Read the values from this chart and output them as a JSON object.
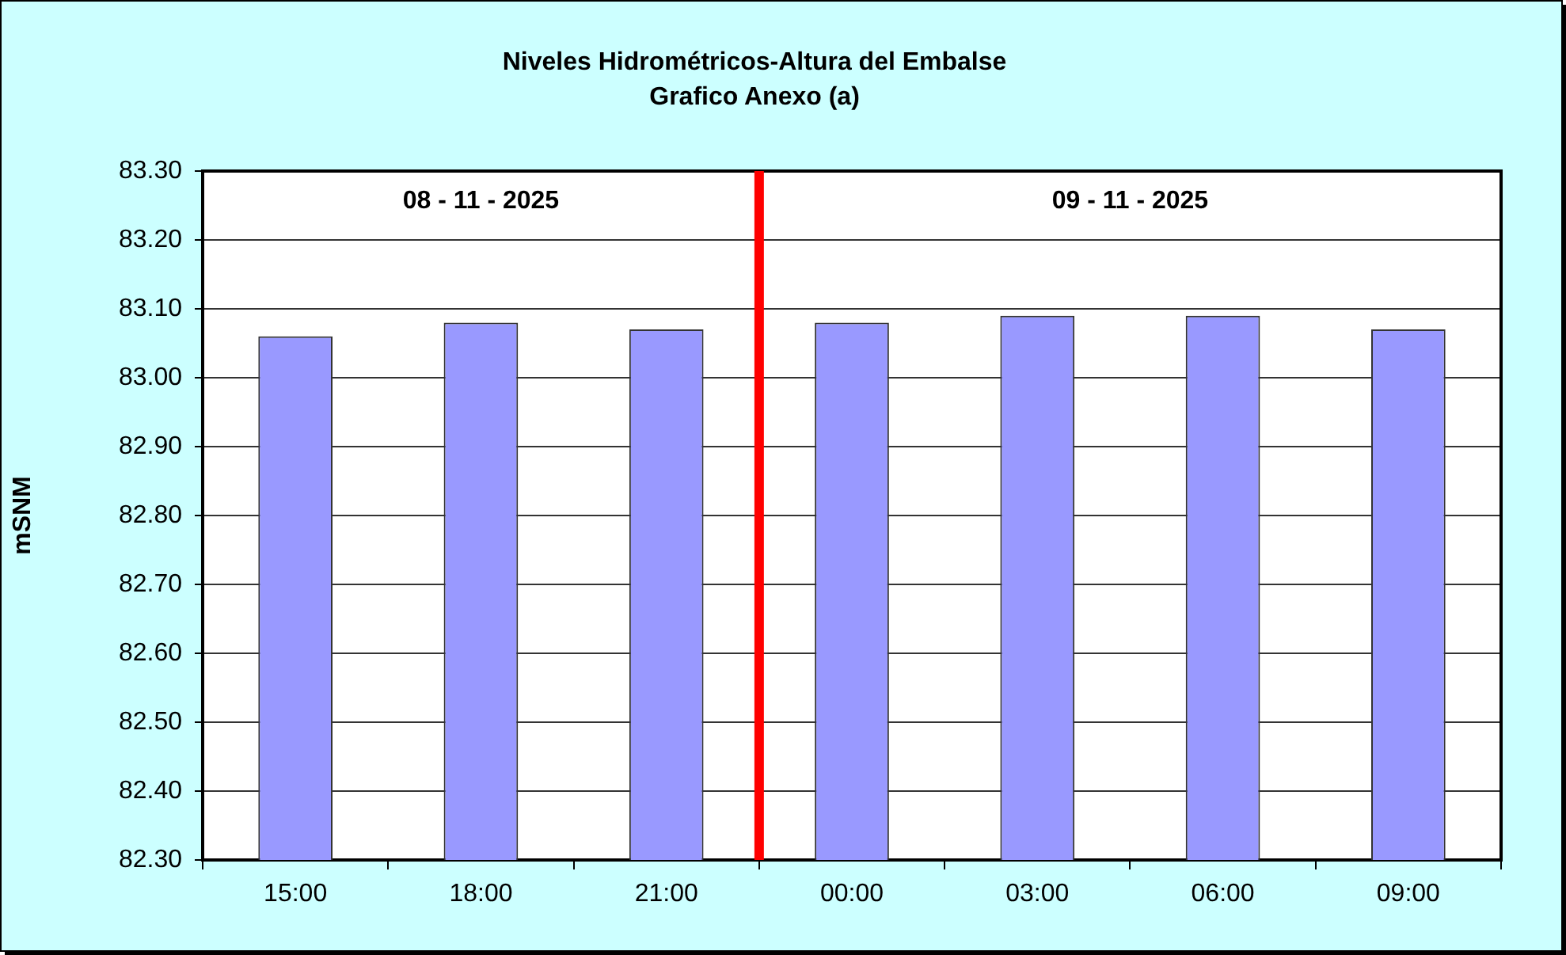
{
  "chart_data": {
    "type": "bar",
    "title": "Niveles Hidrométricos-Altura del Embalse",
    "subtitle": "Grafico Anexo (a)",
    "ylabel": "mSNM",
    "x": [
      "2025-11-08T15:00",
      "2025-11-08T18:00",
      "2025-11-08T21:00",
      "2025-11-09T00:00",
      "2025-11-09T03:00",
      "2025-11-09T06:00",
      "2025-11-09T09:00"
    ],
    "values": [
      83.06,
      83.08,
      83.07,
      83.08,
      83.09,
      83.09,
      83.07
    ],
    "color": "#9999ff",
    "xlim": [
      "2025-11-08T13:30",
      "2025-11-09T10:30"
    ],
    "xticks": [
      {
        "value": "2025-11-08T13:30",
        "label": null
      },
      {
        "value": "2025-11-08T15:00",
        "label": "15:00"
      },
      {
        "value": "2025-11-08T16:30",
        "label": null
      },
      {
        "value": "2025-11-08T18:00",
        "label": "18:00"
      },
      {
        "value": "2025-11-08T19:30",
        "label": null
      },
      {
        "value": "2025-11-08T21:00",
        "label": "21:00"
      },
      {
        "value": "2025-11-08T22:30",
        "label": null
      },
      {
        "value": "2025-11-09T00:00",
        "label": "00:00"
      },
      {
        "value": "2025-11-09T01:30",
        "label": null
      },
      {
        "value": "2025-11-09T03:00",
        "label": "03:00"
      },
      {
        "value": "2025-11-09T04:30",
        "label": null
      },
      {
        "value": "2025-11-09T06:00",
        "label": "06:00"
      },
      {
        "value": "2025-11-09T07:30",
        "label": null
      },
      {
        "value": "2025-11-09T09:00",
        "label": "09:00"
      },
      {
        "value": "2025-11-09T10:30",
        "label": null
      }
    ],
    "ylim": [
      82.3,
      83.3
    ],
    "yticks": [
      {
        "value": 82.3,
        "label": "82.30"
      },
      {
        "value": 82.4,
        "label": "82.40"
      },
      {
        "value": 82.5,
        "label": "82.50"
      },
      {
        "value": 82.6,
        "label": "82.60"
      },
      {
        "value": 82.7,
        "label": "82.70"
      },
      {
        "value": 82.8,
        "label": "82.80"
      },
      {
        "value": 82.9,
        "label": "82.90"
      },
      {
        "value": 83.0,
        "label": "83.00"
      },
      {
        "value": 83.1,
        "label": "83.10"
      },
      {
        "value": 83.2,
        "label": "83.20"
      },
      {
        "value": 83.3,
        "label": "83.30"
      }
    ],
    "grid": "y",
    "legend": false,
    "ref_lines": [
      {
        "axis": "x",
        "value": "2025-11-08T22:30",
        "color": "#ff0000"
      }
    ],
    "annotations": [
      "08 - 11 - 2025",
      "09 - 11 - 2025"
    ]
  }
}
